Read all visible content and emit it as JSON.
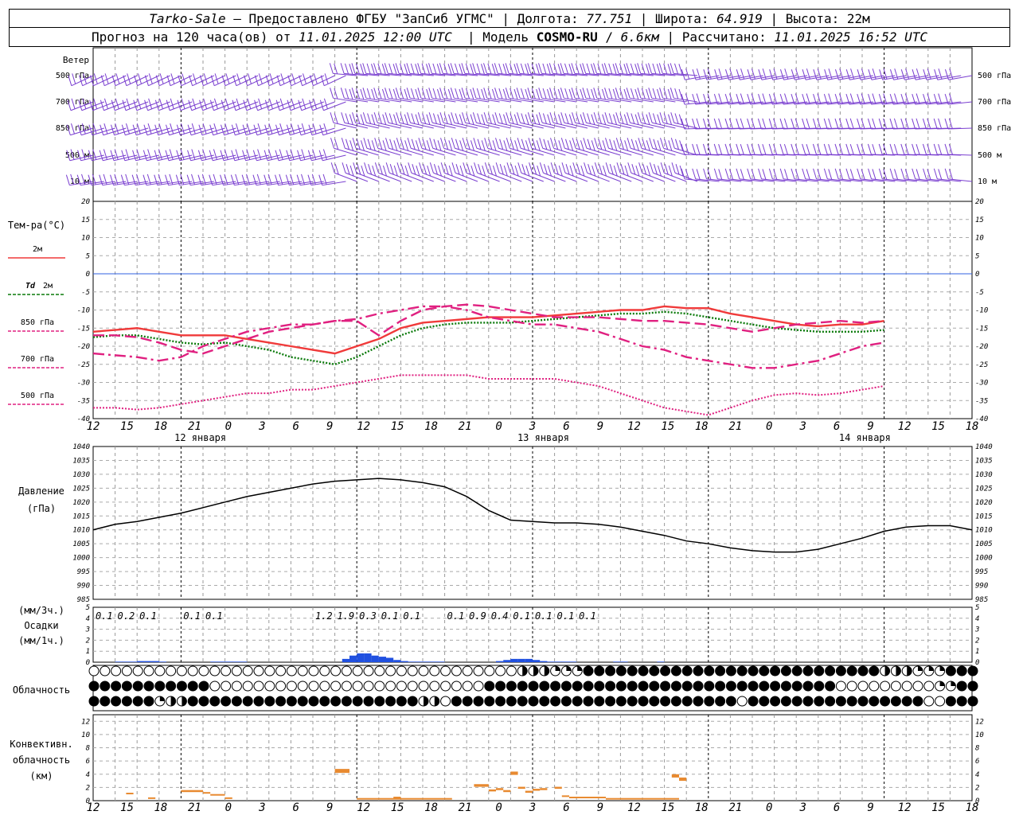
{
  "header": {
    "station": "Tarko-Sale",
    "provider": " – Предоставлено ФГБУ \"ЗапСиб УГМС\" | Долгота: ",
    "lon": "77.751",
    "lat_label": " | Широта: ",
    "lat": "64.919",
    "alt_label": " | Высота: 22м",
    "forecast_prefix": "Прогноз на 120 часа(ов) от ",
    "forecast_start": "11.01.2025 12:00 UTC",
    "model_label": "  | Модель ",
    "model": "COSMO-RU",
    "res_sep": " / ",
    "resolution": "6.6км",
    "calc_label": " | Рассчитано: ",
    "calculated": "11.01.2025 16:52 UTC"
  },
  "labels": {
    "wind": "Ветер",
    "levels": [
      "500 гПа",
      "700 гПа",
      "850 гПа",
      "500 м",
      "10  м"
    ],
    "temp": "Тем-ра(°C)",
    "t2m": "2м",
    "td_td": "Td",
    "td_2m": "2м",
    "t850": "850 гПа",
    "t700": "700 гПа",
    "t500": "500 гПа",
    "pressure1": "Давление",
    "pressure2": "(гПа)",
    "precip1": "(мм/3ч.)",
    "precip2": "Осадки",
    "precip3": "(мм/1ч.)",
    "cloud": "Облачность",
    "conv1": "Конвективн.",
    "conv2": "облачность",
    "conv3": "(км)"
  },
  "dates": [
    "12 января",
    "13 января",
    "14 января"
  ],
  "hour_ticks": [
    "12",
    "15",
    "18",
    "21",
    "0",
    "3",
    "6",
    "9",
    "12",
    "15",
    "18",
    "21",
    "0",
    "3",
    "6",
    "9",
    "12",
    "15",
    "18",
    "21",
    "0",
    "3",
    "6",
    "9",
    "12",
    "15",
    "18"
  ],
  "colors": {
    "wind": "#7a3fd0",
    "t2m": "#f03a3a",
    "td2m": "#0a7a0a",
    "t850": "#e02080",
    "t700": "#e02080",
    "t500": "#e02080",
    "zero": "#3060e0",
    "pressure": "#000000",
    "precip": "#2050e0",
    "conv": "#e88a30"
  },
  "chart_data": [
    {
      "type": "line",
      "title": "Тем-ра(°C)",
      "x_hours": [
        0,
        3,
        6,
        9,
        12,
        15,
        18,
        21,
        24,
        27,
        30,
        33,
        36,
        39,
        42,
        45,
        48,
        51,
        54,
        57,
        60,
        63,
        66,
        69,
        72,
        75,
        78,
        81,
        84,
        87,
        90,
        93,
        96,
        99,
        102,
        105,
        108,
        111,
        114,
        117,
        120
      ],
      "ylim": [
        -40,
        20
      ],
      "series": [
        {
          "name": "2м",
          "values": [
            -16,
            -15.5,
            -15,
            -16,
            -17,
            -17,
            -17,
            -18,
            -19,
            -20,
            -21,
            -22,
            -20,
            -18,
            -15,
            -13.5,
            -13,
            -12.5,
            -12,
            -12,
            -12,
            -11.5,
            -11,
            -10.5,
            -10,
            -10,
            -9,
            -9.5,
            -9.5,
            -11,
            -12,
            -13,
            -14,
            -14.5,
            -14,
            -14,
            -13
          ]
        },
        {
          "name": "Td 2м",
          "values": [
            -17.5,
            -17,
            -17,
            -18,
            -19,
            -19.5,
            -19,
            -20,
            -21,
            -23,
            -24,
            -25,
            -23,
            -20,
            -17,
            -15,
            -14,
            -13.5,
            -13.5,
            -13.5,
            -13,
            -12.5,
            -12,
            -11.5,
            -11,
            -11,
            -10.5,
            -11,
            -12,
            -13,
            -14,
            -15,
            -15.5,
            -16,
            -16,
            -16,
            -15.5
          ]
        },
        {
          "name": "850 гПа",
          "values": [
            -17,
            -17,
            -17.5,
            -19,
            -21,
            -22,
            -20,
            -18,
            -16,
            -15,
            -14,
            -13,
            -13,
            -17,
            -13,
            -10,
            -9,
            -8.5,
            -9,
            -10,
            -11,
            -12,
            -12,
            -12,
            -12.5,
            -13,
            -13,
            -13.5,
            -14,
            -15,
            -16,
            -15,
            -14,
            -13.5,
            -13,
            -13.5,
            -13
          ]
        },
        {
          "name": "700 гПа",
          "values": [
            -22,
            -22.5,
            -23,
            -24,
            -23,
            -20,
            -18,
            -16,
            -15,
            -14,
            -14,
            -13,
            -12.5,
            -11,
            -10,
            -9,
            -9,
            -10,
            -12,
            -13,
            -14,
            -14,
            -15,
            -16,
            -18,
            -20,
            -21,
            -23,
            -24,
            -25,
            -26,
            -26,
            -25,
            -24,
            -22,
            -20,
            -19
          ]
        },
        {
          "name": "500 гПа",
          "values": [
            -37,
            -37,
            -37.5,
            -37,
            -36,
            -35,
            -34,
            -33,
            -33,
            -32,
            -32,
            -31,
            -30,
            -29,
            -28,
            -28,
            -28,
            -28,
            -29,
            -29,
            -29,
            -29,
            -30,
            -31,
            -33,
            -35,
            -37,
            -38,
            -39,
            -37,
            -35,
            -33.5,
            -33,
            -33.5,
            -33,
            -32,
            -31
          ]
        }
      ]
    },
    {
      "type": "line",
      "title": "Давление (гПа)",
      "x_hours": [
        0,
        3,
        6,
        9,
        12,
        15,
        18,
        21,
        24,
        27,
        30,
        33,
        36,
        39,
        42,
        45,
        48,
        51,
        54,
        57,
        60,
        63,
        66,
        69,
        72,
        75,
        78,
        81,
        84,
        87,
        90,
        93,
        96,
        99,
        102,
        105,
        108,
        111,
        114,
        117,
        120
      ],
      "ylim": [
        985,
        1040
      ],
      "series": [
        {
          "name": "Давление",
          "values": [
            1010,
            1012,
            1013,
            1014.5,
            1016,
            1018,
            1020,
            1022,
            1023.5,
            1025,
            1026.5,
            1027.5,
            1028,
            1028.5,
            1028,
            1027,
            1025.5,
            1022,
            1017,
            1013.5,
            1013,
            1012.5,
            1012.5,
            1012,
            1011,
            1009.5,
            1008,
            1006,
            1005,
            1003.5,
            1002.5,
            1002,
            1002,
            1003,
            1005,
            1007,
            1009.5,
            1011,
            1011.5,
            1011.5,
            1010
          ]
        }
      ]
    },
    {
      "type": "bar",
      "title": "Осадки (мм/3ч.)",
      "label_values": [
        "0.1",
        "0.2",
        "0.1",
        "0.1",
        "0.1",
        "1.2",
        "1.9",
        "0.3",
        "0.1",
        "0.1",
        "0.1",
        "0.9",
        "0.4",
        "0.1",
        "0.1",
        "0.1",
        "0.1"
      ],
      "label_hours": [
        1.5,
        4.5,
        7.5,
        13.5,
        16.5,
        31.5,
        34.5,
        37.5,
        40.5,
        43.5,
        49.5,
        52.5,
        55.5,
        58.5,
        61.5,
        64.5,
        67.5
      ],
      "hourly_mm": [
        0,
        0,
        0,
        0.05,
        0.05,
        0.05,
        0.1,
        0.1,
        0.1,
        0.05,
        0,
        0,
        0,
        0,
        0,
        0,
        0.05,
        0.05,
        0.05,
        0.05,
        0.05,
        0,
        0,
        0,
        0,
        0,
        0,
        0,
        0,
        0,
        0,
        0,
        0,
        0,
        0.3,
        0.6,
        0.8,
        0.8,
        0.6,
        0.5,
        0.4,
        0.2,
        0.1,
        0.05,
        0.05,
        0.05,
        0.05,
        0.05,
        0,
        0,
        0,
        0,
        0,
        0,
        0,
        0.1,
        0.2,
        0.3,
        0.3,
        0.3,
        0.2,
        0.1,
        0.05,
        0.05,
        0.05,
        0.05,
        0,
        0,
        0,
        0,
        0,
        0.05,
        0.05,
        0,
        0,
        0,
        0,
        0.05,
        0,
        0,
        0,
        0,
        0,
        0,
        0,
        0,
        0,
        0,
        0,
        0,
        0,
        0,
        0,
        0,
        0,
        0,
        0,
        0,
        0,
        0,
        0,
        0,
        0,
        0,
        0,
        0,
        0,
        0,
        0,
        0,
        0,
        0,
        0,
        0,
        0,
        0,
        0,
        0,
        0,
        0,
        0
      ],
      "ylim": [
        0,
        5
      ]
    },
    {
      "type": "bar",
      "title": "Конвективн. облачность (км)",
      "ylim": [
        0,
        13
      ],
      "segments": [
        {
          "h0": 4.5,
          "h1": 5.5,
          "lo": 1.0,
          "hi": 1.2
        },
        {
          "h0": 7.5,
          "h1": 8.5,
          "lo": 0.3,
          "hi": 0.5
        },
        {
          "h0": 12,
          "h1": 15,
          "lo": 1.3,
          "hi": 1.6
        },
        {
          "h0": 15,
          "h1": 16,
          "lo": 1.1,
          "hi": 1.3
        },
        {
          "h0": 16,
          "h1": 18,
          "lo": 0.8,
          "hi": 1.0
        },
        {
          "h0": 18,
          "h1": 19,
          "lo": 0.3,
          "hi": 0.5
        },
        {
          "h0": 33,
          "h1": 35,
          "lo": 4.2,
          "hi": 4.8
        },
        {
          "h0": 36,
          "h1": 49,
          "lo": 0.2,
          "hi": 0.4
        },
        {
          "h0": 41,
          "h1": 42,
          "lo": 0.4,
          "hi": 0.6
        },
        {
          "h0": 52,
          "h1": 54,
          "lo": 2.1,
          "hi": 2.5
        },
        {
          "h0": 54,
          "h1": 55,
          "lo": 1.4,
          "hi": 1.7
        },
        {
          "h0": 55,
          "h1": 56,
          "lo": 1.6,
          "hi": 1.9
        },
        {
          "h0": 56,
          "h1": 57,
          "lo": 1.3,
          "hi": 1.6
        },
        {
          "h0": 57,
          "h1": 58,
          "lo": 3.9,
          "hi": 4.4
        },
        {
          "h0": 58,
          "h1": 59,
          "lo": 1.8,
          "hi": 2.1
        },
        {
          "h0": 59,
          "h1": 60,
          "lo": 1.2,
          "hi": 1.5
        },
        {
          "h0": 60,
          "h1": 61,
          "lo": 1.5,
          "hi": 1.8
        },
        {
          "h0": 61,
          "h1": 62,
          "lo": 1.6,
          "hi": 1.9
        },
        {
          "h0": 63,
          "h1": 64,
          "lo": 1.8,
          "hi": 2.1
        },
        {
          "h0": 64,
          "h1": 65,
          "lo": 0.6,
          "hi": 0.8
        },
        {
          "h0": 65,
          "h1": 70,
          "lo": 0.4,
          "hi": 0.6
        },
        {
          "h0": 70,
          "h1": 80,
          "lo": 0.2,
          "hi": 0.4
        },
        {
          "h0": 79,
          "h1": 80,
          "lo": 3.5,
          "hi": 4.0
        },
        {
          "h0": 80,
          "h1": 81,
          "lo": 3.0,
          "hi": 3.5
        }
      ]
    }
  ],
  "cloud_rows": {
    "upper": "oooooooooooooooooooooooooooooooooooooooooooooooooooooooooooooooohhhhqqqqqfffffffffffffffffffffffffffffffffffffffffffffhhhhhqqqqqqfffff",
    "middle": "ffffffffffffffffffffoooooooooooooooooooooooooooooooooooooooooooooooffffffffffffffffffffffffffffffffffffffffffffffffffffffffffoooooooooooooooooqqqqfffff",
    "lower": "fffffffffqqhhhffffffffffffffffffffffffffffffffffffhhhooffffffffffffffffffffffffffffffffffffffffffoofffffffffffffffffffffffffffoooofffff"
  }
}
